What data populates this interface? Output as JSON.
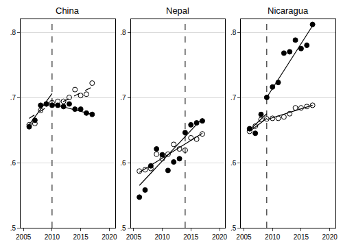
{
  "chart_data": [
    {
      "type": "scatter",
      "title": "China",
      "grid": true,
      "color": "#000000",
      "xlim": [
        2004.5,
        2021
      ],
      "xticks": [
        2005,
        2010,
        2015,
        2020
      ],
      "ylim": [
        0.5,
        0.82
      ],
      "yticks": [
        {
          "value": 0.5,
          "label": ".5"
        },
        {
          "value": 0.6,
          "label": ".6"
        },
        {
          "value": 0.7,
          "label": ".7"
        },
        {
          "value": 0.8,
          "label": ".8"
        }
      ],
      "cutoff": {
        "x": 2010,
        "line_style": "dashed"
      },
      "series": [
        {
          "type": "scatter",
          "marker": "filled",
          "x": [
            2006,
            2007,
            2008,
            2009,
            2010,
            2011,
            2012,
            2013,
            2014,
            2015,
            2016,
            2017
          ],
          "values": [
            0.655,
            0.665,
            0.688,
            0.69,
            0.688,
            0.688,
            0.686,
            0.69,
            0.682,
            0.682,
            0.676,
            0.674
          ]
        },
        {
          "type": "scatter",
          "marker": "hollow",
          "x": [
            2006,
            2007,
            2008,
            2009,
            2010,
            2011,
            2012,
            2013,
            2014,
            2015,
            2016,
            2017
          ],
          "values": [
            0.658,
            0.66,
            0.68,
            0.69,
            0.692,
            0.694,
            0.694,
            0.7,
            0.712,
            0.703,
            0.705,
            0.722
          ]
        },
        {
          "type": "line",
          "line_style": "solid",
          "x": [
            2006,
            2010
          ],
          "values": [
            0.658,
            0.706
          ]
        },
        {
          "type": "line",
          "line_style": "dashed",
          "x": [
            2006,
            2010
          ],
          "values": [
            0.668,
            0.69
          ]
        },
        {
          "type": "line",
          "line_style": "solid",
          "x": [
            2010,
            2017
          ],
          "values": [
            0.69,
            0.674
          ]
        },
        {
          "type": "line",
          "line_style": "dashed",
          "x": [
            2010,
            2017
          ],
          "values": [
            0.685,
            0.716
          ]
        }
      ]
    },
    {
      "type": "scatter",
      "title": "Nepal",
      "grid": true,
      "color": "#000000",
      "xlim": [
        2004.5,
        2021
      ],
      "xticks": [
        2005,
        2010,
        2015,
        2020
      ],
      "ylim": [
        0.5,
        0.82
      ],
      "yticks": [
        {
          "value": 0.5,
          "label": ".5"
        },
        {
          "value": 0.6,
          "label": ".6"
        },
        {
          "value": 0.7,
          "label": ".7"
        },
        {
          "value": 0.8,
          "label": ".8"
        }
      ],
      "cutoff": {
        "x": 2014,
        "line_style": "dashed"
      },
      "series": [
        {
          "type": "scatter",
          "marker": "filled",
          "x": [
            2006,
            2007,
            2008,
            2009,
            2010,
            2011,
            2012,
            2013,
            2014,
            2015,
            2016,
            2017
          ],
          "values": [
            0.547,
            0.558,
            0.595,
            0.621,
            0.612,
            0.588,
            0.601,
            0.606,
            0.646,
            0.658,
            0.661,
            0.664
          ]
        },
        {
          "type": "scatter",
          "marker": "hollow",
          "x": [
            2006,
            2007,
            2008,
            2009,
            2010,
            2011,
            2012,
            2013,
            2014,
            2015,
            2016,
            2017
          ],
          "values": [
            0.587,
            0.589,
            0.591,
            0.613,
            0.606,
            0.613,
            0.628,
            0.621,
            0.619,
            0.638,
            0.636,
            0.644
          ]
        },
        {
          "type": "line",
          "line_style": "solid",
          "x": [
            2006,
            2017
          ],
          "values": [
            0.565,
            0.668
          ]
        },
        {
          "type": "line",
          "line_style": "solid",
          "x": [
            2006,
            2017
          ],
          "values": [
            0.585,
            0.645
          ]
        }
      ]
    },
    {
      "type": "scatter",
      "title": "Nicaragua",
      "grid": true,
      "color": "#000000",
      "xlim": [
        2004.5,
        2021
      ],
      "xticks": [
        2005,
        2010,
        2015,
        2020
      ],
      "ylim": [
        0.5,
        0.82
      ],
      "yticks": [
        {
          "value": 0.5,
          "label": ".5"
        },
        {
          "value": 0.6,
          "label": ".6"
        },
        {
          "value": 0.7,
          "label": ".7"
        },
        {
          "value": 0.8,
          "label": ".8"
        }
      ],
      "cutoff": {
        "x": 2009,
        "line_style": "dashed"
      },
      "series": [
        {
          "type": "scatter",
          "marker": "filled",
          "x": [
            2006,
            2007,
            2008,
            2009,
            2010,
            2011,
            2012,
            2013,
            2014,
            2015,
            2016,
            2017
          ],
          "values": [
            0.652,
            0.645,
            0.674,
            0.7,
            0.716,
            0.723,
            0.768,
            0.77,
            0.788,
            0.775,
            0.78,
            0.812
          ]
        },
        {
          "type": "scatter",
          "marker": "hollow",
          "x": [
            2006,
            2007,
            2008,
            2009,
            2010,
            2011,
            2012,
            2013,
            2014,
            2015,
            2016,
            2017
          ],
          "values": [
            0.648,
            0.656,
            0.666,
            0.667,
            0.668,
            0.668,
            0.67,
            0.675,
            0.684,
            0.684,
            0.686,
            0.688
          ]
        },
        {
          "type": "line",
          "line_style": "solid",
          "x": [
            2006,
            2009
          ],
          "values": [
            0.65,
            0.675
          ]
        },
        {
          "type": "line",
          "line_style": "solid",
          "x": [
            2006,
            2009
          ],
          "values": [
            0.648,
            0.668
          ]
        },
        {
          "type": "line",
          "line_style": "solid",
          "x": [
            2009,
            2017
          ],
          "values": [
            0.7,
            0.81
          ]
        },
        {
          "type": "line",
          "line_style": "solid",
          "x": [
            2009,
            2017
          ],
          "values": [
            0.666,
            0.688
          ]
        }
      ]
    }
  ]
}
